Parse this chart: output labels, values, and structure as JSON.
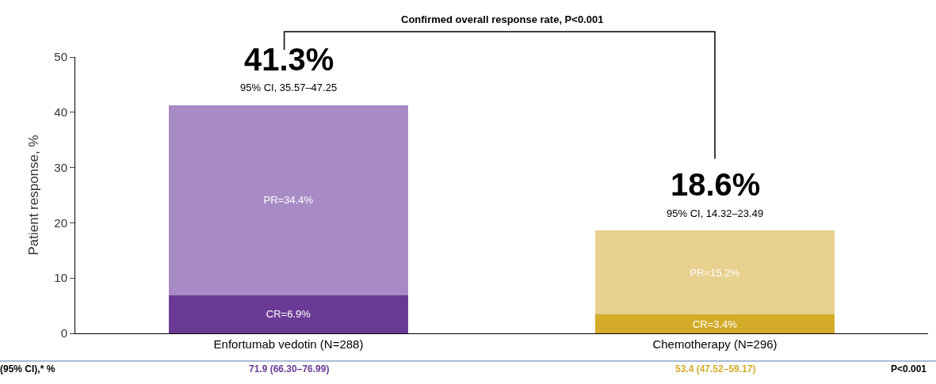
{
  "chart_data": {
    "type": "bar",
    "stacked": true,
    "ylabel": "Patient response, %",
    "categories": [
      "Enfortumab vedotin (N=288)",
      "Chemotherapy (N=296)"
    ],
    "series": [
      {
        "name": null,
        "colors": [
          "#6b3a96",
          "#d4ac2a"
        ],
        "values": [
          6.9,
          3.4
        ],
        "value_labels": [
          "CR=6.9%",
          "CR=3.4%"
        ]
      },
      {
        "name": null,
        "colors": [
          "#a88bc4",
          "#e8d08e"
        ],
        "values": [
          34.4,
          15.2
        ],
        "value_labels": [
          "PR=34.4%",
          "PR=15.2%"
        ]
      }
    ],
    "totals": [
      "41.3%",
      "18.6%"
    ],
    "ylim": [
      0,
      50
    ],
    "yticks": [
      0,
      10,
      20,
      30,
      40,
      50
    ],
    "annotations": [
      "Confirmed overall response rate, P<0.001",
      {
        "text": "95% CI, 35.57–47.25",
        "x": "Enfortumab vedotin (N=288)",
        "y": 41.3
      },
      {
        "text": "95% CI, 14.32–23.49",
        "x": "Chemotherapy (N=296)",
        "y": 18.6
      },
      "(95% CI),* %",
      "71.9 (66.30–76.99)",
      "53.4 (47.52–59.17)",
      "P<0.001"
    ]
  }
}
